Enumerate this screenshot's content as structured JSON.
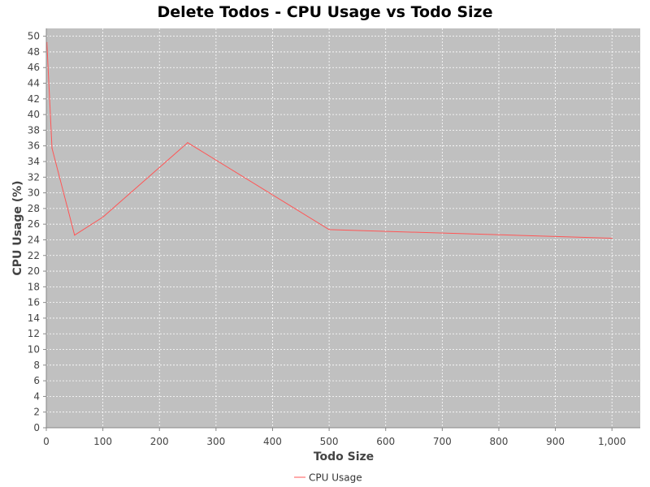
{
  "chart_data": {
    "type": "line",
    "title": "Delete Todos - CPU Usage vs Todo Size",
    "xlabel": "Todo Size",
    "ylabel": "CPU Usage (%)",
    "xlim": [
      0,
      1050
    ],
    "ylim": [
      0,
      51
    ],
    "x_ticks": [
      0,
      100,
      200,
      300,
      400,
      500,
      600,
      700,
      800,
      900,
      1000
    ],
    "x_tick_labels": [
      "0",
      "100",
      "200",
      "300",
      "400",
      "500",
      "600",
      "700",
      "800",
      "900",
      "1,000"
    ],
    "y_ticks": [
      0,
      2,
      4,
      6,
      8,
      10,
      12,
      14,
      16,
      18,
      20,
      22,
      24,
      26,
      28,
      30,
      32,
      34,
      36,
      38,
      40,
      42,
      44,
      46,
      48,
      50
    ],
    "y_tick_labels": [
      "0",
      "2",
      "4",
      "6",
      "8",
      "10",
      "12",
      "14",
      "16",
      "18",
      "20",
      "22",
      "24",
      "26",
      "28",
      "30",
      "32",
      "34",
      "36",
      "38",
      "40",
      "42",
      "44",
      "46",
      "48",
      "50"
    ],
    "grid": true,
    "legend_position": "bottom-center",
    "plot_background": "#c0c0c0",
    "series": [
      {
        "name": "CPU Usage",
        "color": "#ff5555",
        "x": [
          1,
          10,
          50,
          100,
          250,
          500,
          1000
        ],
        "y": [
          49.2,
          35.7,
          24.6,
          26.9,
          36.4,
          25.3,
          24.2
        ]
      }
    ]
  }
}
